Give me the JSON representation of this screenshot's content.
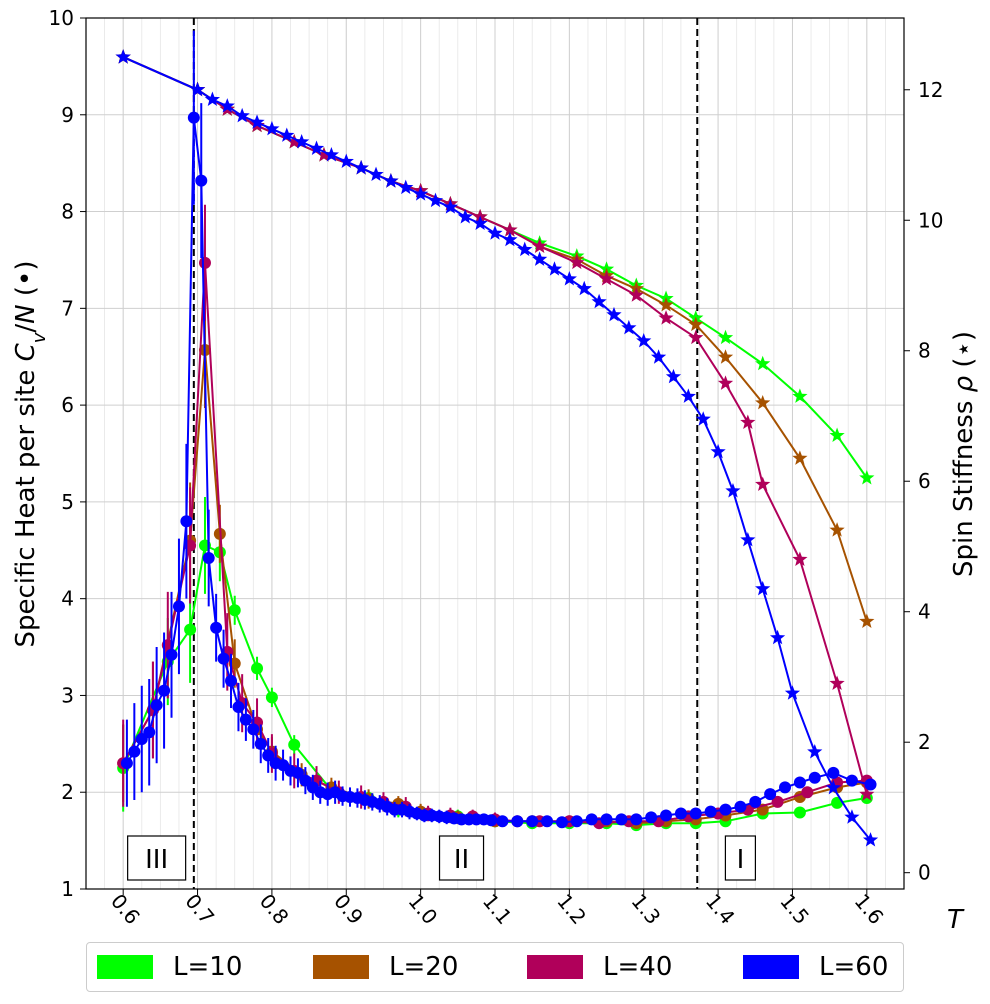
{
  "chart_data": {
    "type": "line",
    "xlabel": "T",
    "ylabel": "Specific Heat per site C_v/N (•)",
    "ylabel_right": "Spin Stiffness ρ (⋆)",
    "xlim": [
      0.55,
      1.65
    ],
    "ylim": [
      1,
      10
    ],
    "ylim_right": [
      -0.25,
      13.1
    ],
    "xticks": [
      "0.6",
      "0.7",
      "0.8",
      "0.9",
      "1.0",
      "1.1",
      "1.2",
      "1.3",
      "1.4",
      "1.5",
      "1.6"
    ],
    "yticks": [
      "1",
      "2",
      "3",
      "4",
      "5",
      "6",
      "7",
      "8",
      "9",
      "10"
    ],
    "yticks_right": [
      "0",
      "2",
      "4",
      "6",
      "8",
      "10",
      "12"
    ],
    "grid": true,
    "legend_position": "bottom",
    "vlines": [
      0.695,
      1.372
    ],
    "regions": [
      {
        "label": "III",
        "x": 0.645
      },
      {
        "label": "II",
        "x": 1.055
      },
      {
        "label": "I",
        "x": 1.43
      }
    ],
    "series": [
      {
        "name": "L=10",
        "color": "#00ff00",
        "cv_x": [
          0.6,
          0.66,
          0.69,
          0.71,
          0.73,
          0.75,
          0.78,
          0.8,
          0.83,
          0.88,
          0.93,
          0.97,
          1.0,
          1.05,
          1.1,
          1.15,
          1.2,
          1.25,
          1.29,
          1.33,
          1.37,
          1.41,
          1.46,
          1.51,
          1.56,
          1.6
        ],
        "cv": [
          2.25,
          3.35,
          3.68,
          4.55,
          4.48,
          3.88,
          3.28,
          2.98,
          2.49,
          2.02,
          1.94,
          1.82,
          1.79,
          1.75,
          1.7,
          1.68,
          1.68,
          1.68,
          1.66,
          1.68,
          1.68,
          1.7,
          1.78,
          1.79,
          1.89,
          1.94
        ],
        "cv_err": [
          0.45,
          0.45,
          0.55,
          0.5,
          0.3,
          0.15,
          0.12,
          0.1,
          0.1,
          0.08,
          0.08,
          0.08,
          0.07,
          0.07,
          0.06,
          0.06,
          0.05,
          0.05,
          0.05,
          0.05,
          0.05,
          0.05,
          0.05,
          0.05,
          0.05,
          0.05
        ],
        "rho_x": [
          0.6,
          0.7,
          0.74,
          0.78,
          0.83,
          0.87,
          0.92,
          0.96,
          1.0,
          1.04,
          1.08,
          1.12,
          1.16,
          1.21,
          1.25,
          1.29,
          1.33,
          1.37,
          1.41,
          1.46,
          1.51,
          1.56,
          1.6
        ],
        "rho": [
          12.5,
          12.0,
          11.7,
          11.45,
          11.2,
          11.0,
          10.8,
          10.6,
          10.45,
          10.25,
          10.05,
          9.85,
          9.65,
          9.45,
          9.25,
          9.0,
          8.8,
          8.5,
          8.2,
          7.8,
          7.3,
          6.7,
          6.05
        ]
      },
      {
        "name": "L=20",
        "color": "#a65200",
        "cv_x": [
          0.6,
          0.64,
          0.69,
          0.71,
          0.73,
          0.75,
          0.78,
          0.8,
          0.84,
          0.88,
          0.93,
          0.97,
          1.0,
          1.05,
          1.1,
          1.15,
          1.2,
          1.25,
          1.29,
          1.33,
          1.37,
          1.41,
          1.46,
          1.51,
          1.56,
          1.6
        ],
        "cv": [
          2.3,
          2.85,
          4.6,
          6.57,
          4.67,
          3.33,
          2.65,
          2.42,
          2.18,
          2.05,
          1.93,
          1.88,
          1.8,
          1.74,
          1.7,
          1.7,
          1.7,
          1.7,
          1.68,
          1.7,
          1.72,
          1.76,
          1.82,
          1.95,
          2.05,
          2.1
        ],
        "cv_err": [
          0.4,
          0.5,
          0.6,
          0.6,
          0.3,
          0.25,
          0.2,
          0.15,
          0.12,
          0.1,
          0.1,
          0.08,
          0.08,
          0.07,
          0.06,
          0.06,
          0.05,
          0.05,
          0.05,
          0.05,
          0.05,
          0.05,
          0.05,
          0.05,
          0.05,
          0.05
        ],
        "rho_x": [
          0.6,
          0.7,
          0.74,
          0.78,
          0.83,
          0.87,
          0.92,
          0.96,
          1.0,
          1.04,
          1.08,
          1.12,
          1.16,
          1.21,
          1.25,
          1.29,
          1.33,
          1.37,
          1.41,
          1.46,
          1.51,
          1.56,
          1.6
        ],
        "rho": [
          12.5,
          12.0,
          11.7,
          11.45,
          11.2,
          11.0,
          10.8,
          10.6,
          10.45,
          10.25,
          10.05,
          9.85,
          9.6,
          9.4,
          9.15,
          8.95,
          8.7,
          8.4,
          7.9,
          7.2,
          6.35,
          5.25,
          3.85
        ]
      },
      {
        "name": "L=40",
        "color": "#b0005a",
        "cv_x": [
          0.6,
          0.64,
          0.66,
          0.69,
          0.71,
          0.74,
          0.76,
          0.78,
          0.8,
          0.83,
          0.86,
          0.89,
          0.92,
          0.95,
          0.98,
          1.01,
          1.04,
          1.07,
          1.1,
          1.13,
          1.16,
          1.2,
          1.24,
          1.28,
          1.32,
          1.36,
          1.4,
          1.44,
          1.48,
          1.52,
          1.56,
          1.6
        ],
        "cv": [
          2.3,
          2.85,
          3.52,
          4.55,
          7.47,
          3.45,
          2.92,
          2.72,
          2.4,
          2.22,
          2.12,
          2.0,
          1.95,
          1.9,
          1.85,
          1.78,
          1.76,
          1.75,
          1.72,
          1.7,
          1.7,
          1.7,
          1.68,
          1.7,
          1.7,
          1.75,
          1.78,
          1.82,
          1.9,
          2.0,
          2.1,
          2.12
        ],
        "cv_err": [
          0.45,
          0.5,
          0.55,
          0.6,
          0.6,
          0.4,
          0.3,
          0.25,
          0.2,
          0.18,
          0.15,
          0.12,
          0.12,
          0.1,
          0.1,
          0.08,
          0.08,
          0.07,
          0.07,
          0.06,
          0.06,
          0.05,
          0.05,
          0.05,
          0.05,
          0.05,
          0.05,
          0.05,
          0.05,
          0.05,
          0.05,
          0.05
        ],
        "rho_x": [
          0.6,
          0.7,
          0.74,
          0.78,
          0.83,
          0.87,
          0.92,
          0.96,
          1.0,
          1.04,
          1.08,
          1.12,
          1.16,
          1.21,
          1.25,
          1.29,
          1.33,
          1.37,
          1.41,
          1.44,
          1.46,
          1.51,
          1.56,
          1.6
        ],
        "rho": [
          12.5,
          12.0,
          11.7,
          11.45,
          11.2,
          11.0,
          10.8,
          10.6,
          10.45,
          10.25,
          10.05,
          9.85,
          9.6,
          9.35,
          9.1,
          8.85,
          8.5,
          8.2,
          7.5,
          6.9,
          5.95,
          4.8,
          2.9,
          1.2
        ]
      },
      {
        "name": "L=60",
        "color": "#0000ff",
        "cv_x": [
          0.605,
          0.615,
          0.625,
          0.635,
          0.645,
          0.655,
          0.665,
          0.675,
          0.685,
          0.695,
          0.705,
          0.715,
          0.725,
          0.735,
          0.745,
          0.755,
          0.765,
          0.775,
          0.785,
          0.795,
          0.805,
          0.815,
          0.825,
          0.835,
          0.845,
          0.855,
          0.865,
          0.875,
          0.885,
          0.895,
          0.905,
          0.915,
          0.925,
          0.935,
          0.945,
          0.955,
          0.965,
          0.975,
          0.985,
          0.995,
          1.005,
          1.015,
          1.025,
          1.035,
          1.045,
          1.055,
          1.065,
          1.075,
          1.085,
          1.095,
          1.11,
          1.13,
          1.15,
          1.17,
          1.19,
          1.21,
          1.23,
          1.25,
          1.27,
          1.29,
          1.31,
          1.33,
          1.35,
          1.37,
          1.39,
          1.41,
          1.43,
          1.45,
          1.47,
          1.49,
          1.51,
          1.53,
          1.555,
          1.58,
          1.605
        ],
        "cv": [
          2.3,
          2.42,
          2.55,
          2.62,
          2.9,
          3.05,
          3.42,
          3.92,
          4.8,
          8.97,
          8.32,
          4.42,
          3.7,
          3.38,
          3.15,
          2.88,
          2.75,
          2.65,
          2.5,
          2.38,
          2.3,
          2.28,
          2.22,
          2.2,
          2.12,
          2.05,
          2.0,
          1.98,
          2.0,
          1.96,
          1.95,
          1.94,
          1.92,
          1.9,
          1.88,
          1.85,
          1.82,
          1.82,
          1.8,
          1.78,
          1.76,
          1.76,
          1.75,
          1.74,
          1.73,
          1.72,
          1.72,
          1.72,
          1.72,
          1.71,
          1.7,
          1.7,
          1.7,
          1.7,
          1.69,
          1.7,
          1.72,
          1.72,
          1.72,
          1.72,
          1.74,
          1.76,
          1.78,
          1.78,
          1.8,
          1.82,
          1.85,
          1.9,
          1.98,
          2.05,
          2.1,
          2.15,
          2.2,
          2.12,
          2.08
        ],
        "cv_err": [
          0.45,
          0.5,
          0.55,
          0.55,
          0.6,
          0.6,
          0.65,
          0.7,
          0.8,
          0.9,
          0.8,
          0.5,
          0.35,
          0.3,
          0.28,
          0.25,
          0.22,
          0.2,
          0.2,
          0.18,
          0.18,
          0.16,
          0.15,
          0.15,
          0.14,
          0.13,
          0.12,
          0.12,
          0.12,
          0.1,
          0.1,
          0.1,
          0.1,
          0.09,
          0.09,
          0.09,
          0.08,
          0.08,
          0.08,
          0.07,
          0.07,
          0.07,
          0.07,
          0.07,
          0.06,
          0.06,
          0.06,
          0.06,
          0.06,
          0.06,
          0.05,
          0.05,
          0.05,
          0.05,
          0.05,
          0.05,
          0.05,
          0.05,
          0.05,
          0.05,
          0.05,
          0.05,
          0.05,
          0.05,
          0.05,
          0.05,
          0.05,
          0.05,
          0.05,
          0.05,
          0.05,
          0.05,
          0.05,
          0.05,
          0.05
        ],
        "rho_x": [
          0.6,
          0.7,
          0.72,
          0.74,
          0.76,
          0.78,
          0.8,
          0.82,
          0.84,
          0.86,
          0.88,
          0.9,
          0.92,
          0.94,
          0.96,
          0.98,
          1.0,
          1.02,
          1.04,
          1.06,
          1.08,
          1.1,
          1.12,
          1.14,
          1.16,
          1.18,
          1.2,
          1.22,
          1.24,
          1.26,
          1.28,
          1.3,
          1.32,
          1.34,
          1.36,
          1.38,
          1.4,
          1.42,
          1.44,
          1.46,
          1.48,
          1.5,
          1.53,
          1.555,
          1.58,
          1.605
        ],
        "rho": [
          12.5,
          12.0,
          11.85,
          11.75,
          11.6,
          11.5,
          11.4,
          11.3,
          11.2,
          11.1,
          11.0,
          10.9,
          10.8,
          10.7,
          10.6,
          10.5,
          10.4,
          10.3,
          10.2,
          10.05,
          9.95,
          9.8,
          9.7,
          9.55,
          9.4,
          9.25,
          9.1,
          8.95,
          8.75,
          8.55,
          8.35,
          8.15,
          7.9,
          7.6,
          7.3,
          6.95,
          6.45,
          5.85,
          5.1,
          4.35,
          3.6,
          2.75,
          1.85,
          1.3,
          0.85,
          0.5
        ]
      }
    ]
  }
}
